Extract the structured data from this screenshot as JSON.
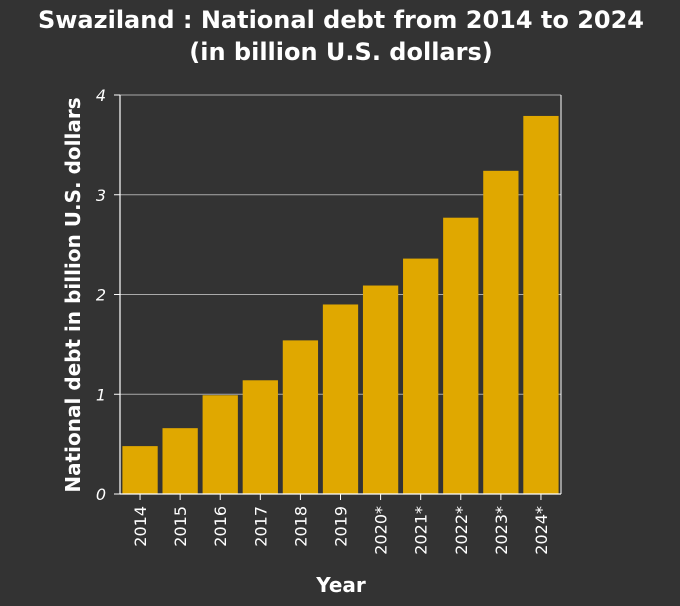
{
  "chart_data": {
    "type": "bar",
    "title_line1": "Swaziland : National debt from 2014 to 2024",
    "title_line2": "(in billion U.S. dollars)",
    "xlabel": "Year",
    "ylabel": "National debt in billion U.S. dollars",
    "categories": [
      "2014",
      "2015",
      "2016",
      "2017",
      "2018",
      "2019",
      "2020*",
      "2021*",
      "2022*",
      "2023*",
      "2024*"
    ],
    "values": [
      0.48,
      0.66,
      0.99,
      1.14,
      1.54,
      1.9,
      2.09,
      2.36,
      2.77,
      3.24,
      3.79
    ],
    "ylim": [
      0,
      4
    ],
    "yticks": [
      "0",
      "1",
      "2",
      "3",
      "4"
    ],
    "grid": true,
    "bar_color": "#e0a800",
    "background_color": "#333333",
    "grid_color": "#aaaaaa"
  }
}
